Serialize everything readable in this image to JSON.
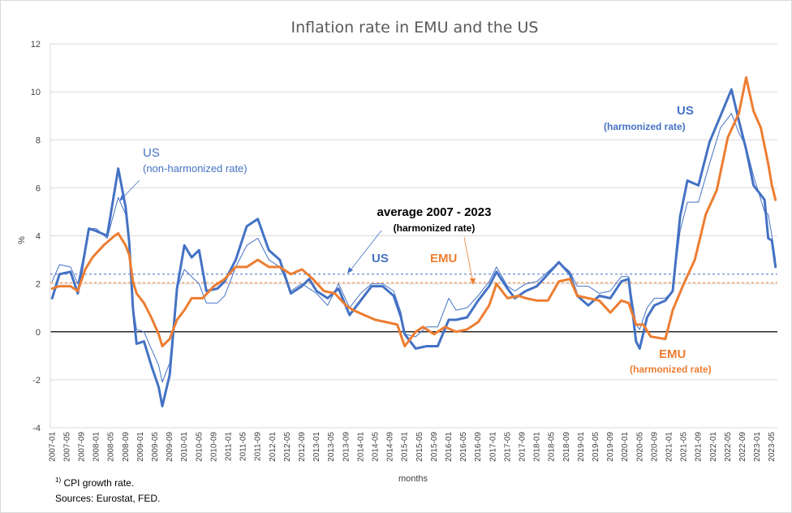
{
  "chart_data": {
    "type": "line",
    "title": "Inflation rate in EMU and the US",
    "ylabel": "%",
    "xlabel": "months",
    "ylim": [
      -4,
      12
    ],
    "yticks": [
      -4,
      -2,
      0,
      2,
      4,
      6,
      8,
      10,
      12
    ],
    "x_start": "2007-01",
    "x_end": "2023-06",
    "x_tick_labels": [
      "2007-01",
      "2007-05",
      "2007-09",
      "2008-01",
      "2008-05",
      "2008-09",
      "2009-01",
      "2009-05",
      "2009-09",
      "2010-01",
      "2010-05",
      "2010-09",
      "2011-01",
      "2011-05",
      "2011-09",
      "2012-01",
      "2012-05",
      "2012-09",
      "2013-01",
      "2013-05",
      "2013-09",
      "2014-01",
      "2014-05",
      "2014-09",
      "2015-01",
      "2015-05",
      "2015-09",
      "2016-01",
      "2016-05",
      "2016-09",
      "2017-01",
      "2017-05",
      "2017-09",
      "2018-01",
      "2018-05",
      "2018-09",
      "2019-01",
      "2019-05",
      "2019-09",
      "2020-01",
      "2020-05",
      "2020-09",
      "2021-01",
      "2021-05",
      "2021-09",
      "2022-01",
      "2022-05",
      "2022-09",
      "2023-01",
      "2023-05"
    ],
    "series": [
      {
        "name": "US (harmonized rate)",
        "color": "#4472c4",
        "width": 3,
        "points": [
          [
            "2007-01",
            1.4
          ],
          [
            "2007-03",
            2.4
          ],
          [
            "2007-06",
            2.5
          ],
          [
            "2007-08",
            1.6
          ],
          [
            "2007-11",
            4.3
          ],
          [
            "2008-01",
            4.2
          ],
          [
            "2008-04",
            4.0
          ],
          [
            "2008-07",
            6.8
          ],
          [
            "2008-09",
            5.2
          ],
          [
            "2008-10",
            3.7
          ],
          [
            "2008-11",
            1.0
          ],
          [
            "2008-12",
            -0.5
          ],
          [
            "2009-02",
            -0.4
          ],
          [
            "2009-04",
            -1.4
          ],
          [
            "2009-06",
            -2.3
          ],
          [
            "2009-07",
            -3.1
          ],
          [
            "2009-09",
            -1.8
          ],
          [
            "2009-11",
            1.8
          ],
          [
            "2010-01",
            3.6
          ],
          [
            "2010-03",
            3.1
          ],
          [
            "2010-05",
            3.4
          ],
          [
            "2010-07",
            1.7
          ],
          [
            "2010-10",
            1.8
          ],
          [
            "2010-12",
            2.1
          ],
          [
            "2011-03",
            3.0
          ],
          [
            "2011-06",
            4.4
          ],
          [
            "2011-09",
            4.7
          ],
          [
            "2011-12",
            3.4
          ],
          [
            "2012-03",
            3.0
          ],
          [
            "2012-06",
            1.6
          ],
          [
            "2012-09",
            1.9
          ],
          [
            "2012-11",
            2.2
          ],
          [
            "2013-01",
            1.7
          ],
          [
            "2013-04",
            1.4
          ],
          [
            "2013-07",
            1.8
          ],
          [
            "2013-10",
            0.7
          ],
          [
            "2014-01",
            1.3
          ],
          [
            "2014-04",
            1.9
          ],
          [
            "2014-07",
            1.9
          ],
          [
            "2014-10",
            1.5
          ],
          [
            "2014-12",
            0.6
          ],
          [
            "2015-01",
            -0.1
          ],
          [
            "2015-04",
            -0.7
          ],
          [
            "2015-07",
            -0.6
          ],
          [
            "2015-10",
            -0.6
          ],
          [
            "2016-01",
            0.5
          ],
          [
            "2016-03",
            0.5
          ],
          [
            "2016-06",
            0.6
          ],
          [
            "2016-09",
            1.3
          ],
          [
            "2016-12",
            1.9
          ],
          [
            "2017-02",
            2.5
          ],
          [
            "2017-05",
            1.8
          ],
          [
            "2017-07",
            1.4
          ],
          [
            "2017-10",
            1.7
          ],
          [
            "2018-01",
            1.9
          ],
          [
            "2018-04",
            2.4
          ],
          [
            "2018-07",
            2.9
          ],
          [
            "2018-10",
            2.4
          ],
          [
            "2018-12",
            1.5
          ],
          [
            "2019-03",
            1.1
          ],
          [
            "2019-06",
            1.5
          ],
          [
            "2019-09",
            1.4
          ],
          [
            "2019-12",
            2.1
          ],
          [
            "2020-02",
            2.2
          ],
          [
            "2020-04",
            -0.4
          ],
          [
            "2020-05",
            -0.7
          ],
          [
            "2020-07",
            0.6
          ],
          [
            "2020-09",
            1.1
          ],
          [
            "2020-12",
            1.3
          ],
          [
            "2021-02",
            1.7
          ],
          [
            "2021-04",
            4.8
          ],
          [
            "2021-06",
            6.3
          ],
          [
            "2021-09",
            6.1
          ],
          [
            "2021-12",
            7.9
          ],
          [
            "2022-03",
            9.0
          ],
          [
            "2022-06",
            10.1
          ],
          [
            "2022-08",
            8.8
          ],
          [
            "2022-10",
            7.6
          ],
          [
            "2022-12",
            6.1
          ],
          [
            "2023-03",
            5.5
          ],
          [
            "2023-04",
            3.9
          ],
          [
            "2023-05",
            3.8
          ],
          [
            "2023-06",
            2.7
          ]
        ]
      },
      {
        "name": "US (non-harmonized rate)",
        "color": "#4472c4",
        "width": 1,
        "points": [
          [
            "2007-01",
            2.1
          ],
          [
            "2007-03",
            2.8
          ],
          [
            "2007-06",
            2.7
          ],
          [
            "2007-08",
            2.0
          ],
          [
            "2007-11",
            4.3
          ],
          [
            "2008-01",
            4.3
          ],
          [
            "2008-04",
            3.9
          ],
          [
            "2008-07",
            5.6
          ],
          [
            "2008-09",
            4.9
          ],
          [
            "2008-10",
            3.7
          ],
          [
            "2008-11",
            1.1
          ],
          [
            "2008-12",
            0.1
          ],
          [
            "2009-02",
            0.0
          ],
          [
            "2009-04",
            -0.7
          ],
          [
            "2009-06",
            -1.4
          ],
          [
            "2009-07",
            -2.1
          ],
          [
            "2009-09",
            -1.3
          ],
          [
            "2009-11",
            1.8
          ],
          [
            "2010-01",
            2.6
          ],
          [
            "2010-03",
            2.3
          ],
          [
            "2010-05",
            2.0
          ],
          [
            "2010-07",
            1.2
          ],
          [
            "2010-10",
            1.2
          ],
          [
            "2010-12",
            1.5
          ],
          [
            "2011-03",
            2.7
          ],
          [
            "2011-06",
            3.6
          ],
          [
            "2011-09",
            3.9
          ],
          [
            "2011-12",
            3.0
          ],
          [
            "2012-03",
            2.7
          ],
          [
            "2012-06",
            1.7
          ],
          [
            "2012-09",
            2.0
          ],
          [
            "2012-11",
            1.8
          ],
          [
            "2013-01",
            1.6
          ],
          [
            "2013-04",
            1.1
          ],
          [
            "2013-07",
            2.0
          ],
          [
            "2013-10",
            1.0
          ],
          [
            "2014-01",
            1.6
          ],
          [
            "2014-04",
            2.0
          ],
          [
            "2014-07",
            2.0
          ],
          [
            "2014-10",
            1.7
          ],
          [
            "2014-12",
            0.8
          ],
          [
            "2015-01",
            -0.1
          ],
          [
            "2015-04",
            -0.2
          ],
          [
            "2015-07",
            0.2
          ],
          [
            "2015-10",
            0.2
          ],
          [
            "2016-01",
            1.4
          ],
          [
            "2016-03",
            0.9
          ],
          [
            "2016-06",
            1.0
          ],
          [
            "2016-09",
            1.5
          ],
          [
            "2016-12",
            2.1
          ],
          [
            "2017-02",
            2.7
          ],
          [
            "2017-05",
            1.9
          ],
          [
            "2017-07",
            1.7
          ],
          [
            "2017-10",
            2.0
          ],
          [
            "2018-01",
            2.1
          ],
          [
            "2018-04",
            2.5
          ],
          [
            "2018-07",
            2.9
          ],
          [
            "2018-10",
            2.5
          ],
          [
            "2018-12",
            1.9
          ],
          [
            "2019-03",
            1.9
          ],
          [
            "2019-06",
            1.6
          ],
          [
            "2019-09",
            1.7
          ],
          [
            "2019-12",
            2.3
          ],
          [
            "2020-02",
            2.3
          ],
          [
            "2020-04",
            0.3
          ],
          [
            "2020-05",
            0.1
          ],
          [
            "2020-07",
            1.0
          ],
          [
            "2020-09",
            1.4
          ],
          [
            "2020-12",
            1.4
          ],
          [
            "2021-02",
            1.7
          ],
          [
            "2021-04",
            4.2
          ],
          [
            "2021-06",
            5.4
          ],
          [
            "2021-09",
            5.4
          ],
          [
            "2021-12",
            7.0
          ],
          [
            "2022-03",
            8.5
          ],
          [
            "2022-06",
            9.1
          ],
          [
            "2022-08",
            8.3
          ],
          [
            "2022-10",
            7.7
          ],
          [
            "2022-12",
            6.5
          ],
          [
            "2023-03",
            5.0
          ],
          [
            "2023-04",
            4.9
          ],
          [
            "2023-05",
            4.0
          ],
          [
            "2023-06",
            3.0
          ]
        ]
      },
      {
        "name": "EMU (harmonized rate)",
        "color": "#ed7d31",
        "width": 3,
        "points": [
          [
            "2007-01",
            1.8
          ],
          [
            "2007-03",
            1.9
          ],
          [
            "2007-06",
            1.9
          ],
          [
            "2007-08",
            1.7
          ],
          [
            "2007-10",
            2.6
          ],
          [
            "2007-12",
            3.1
          ],
          [
            "2008-03",
            3.6
          ],
          [
            "2008-06",
            4.0
          ],
          [
            "2008-07",
            4.1
          ],
          [
            "2008-09",
            3.6
          ],
          [
            "2008-10",
            3.2
          ],
          [
            "2008-11",
            2.1
          ],
          [
            "2008-12",
            1.6
          ],
          [
            "2009-02",
            1.2
          ],
          [
            "2009-04",
            0.6
          ],
          [
            "2009-06",
            -0.1
          ],
          [
            "2009-07",
            -0.6
          ],
          [
            "2009-09",
            -0.3
          ],
          [
            "2009-11",
            0.5
          ],
          [
            "2010-01",
            0.9
          ],
          [
            "2010-03",
            1.4
          ],
          [
            "2010-06",
            1.4
          ],
          [
            "2010-09",
            1.9
          ],
          [
            "2010-12",
            2.2
          ],
          [
            "2011-03",
            2.7
          ],
          [
            "2011-06",
            2.7
          ],
          [
            "2011-09",
            3.0
          ],
          [
            "2011-12",
            2.7
          ],
          [
            "2012-03",
            2.7
          ],
          [
            "2012-06",
            2.4
          ],
          [
            "2012-09",
            2.6
          ],
          [
            "2012-12",
            2.2
          ],
          [
            "2013-03",
            1.7
          ],
          [
            "2013-06",
            1.6
          ],
          [
            "2013-09",
            1.1
          ],
          [
            "2013-11",
            0.9
          ],
          [
            "2014-02",
            0.7
          ],
          [
            "2014-05",
            0.5
          ],
          [
            "2014-08",
            0.4
          ],
          [
            "2014-11",
            0.3
          ],
          [
            "2015-01",
            -0.6
          ],
          [
            "2015-04",
            0.0
          ],
          [
            "2015-06",
            0.2
          ],
          [
            "2015-09",
            -0.1
          ],
          [
            "2015-12",
            0.2
          ],
          [
            "2016-03",
            0.0
          ],
          [
            "2016-06",
            0.1
          ],
          [
            "2016-09",
            0.4
          ],
          [
            "2016-12",
            1.1
          ],
          [
            "2017-02",
            2.0
          ],
          [
            "2017-05",
            1.4
          ],
          [
            "2017-08",
            1.5
          ],
          [
            "2017-10",
            1.4
          ],
          [
            "2018-01",
            1.3
          ],
          [
            "2018-04",
            1.3
          ],
          [
            "2018-07",
            2.1
          ],
          [
            "2018-10",
            2.2
          ],
          [
            "2018-12",
            1.5
          ],
          [
            "2019-03",
            1.4
          ],
          [
            "2019-06",
            1.3
          ],
          [
            "2019-09",
            0.8
          ],
          [
            "2019-12",
            1.3
          ],
          [
            "2020-02",
            1.2
          ],
          [
            "2020-04",
            0.3
          ],
          [
            "2020-06",
            0.3
          ],
          [
            "2020-08",
            -0.2
          ],
          [
            "2020-12",
            -0.3
          ],
          [
            "2021-02",
            0.9
          ],
          [
            "2021-05",
            2.0
          ],
          [
            "2021-08",
            3.0
          ],
          [
            "2021-11",
            4.9
          ],
          [
            "2022-02",
            5.9
          ],
          [
            "2022-05",
            8.1
          ],
          [
            "2022-08",
            9.1
          ],
          [
            "2022-10",
            10.6
          ],
          [
            "2022-12",
            9.2
          ],
          [
            "2023-02",
            8.5
          ],
          [
            "2023-04",
            7.0
          ],
          [
            "2023-05",
            6.1
          ],
          [
            "2023-06",
            5.5
          ]
        ]
      }
    ],
    "averages": [
      {
        "name": "average US",
        "value": 2.4,
        "color": "#4472c4",
        "style": "dashed"
      },
      {
        "name": "average EMU",
        "value": 2.05,
        "color": "#ed7d31",
        "style": "dashed"
      }
    ],
    "annotations": {
      "us_non_harmonized": {
        "line1": "US",
        "line2": "(non-harmonized rate)"
      },
      "average": {
        "line1": "average 2007 - 2023",
        "line2": "(harmonized rate)"
      },
      "us_mid": "US",
      "emu_mid": "EMU",
      "us_harmonized": {
        "line1": "US",
        "line2": "(harmonized rate)"
      },
      "emu_harmonized": {
        "line1": "EMU",
        "line2": "(harmonized rate)"
      }
    },
    "grid": true,
    "legend": "none"
  },
  "footnotes": {
    "superscript": "1)",
    "note": " CPI growth rate.",
    "sources": "Sources: Eurostat, FED."
  }
}
